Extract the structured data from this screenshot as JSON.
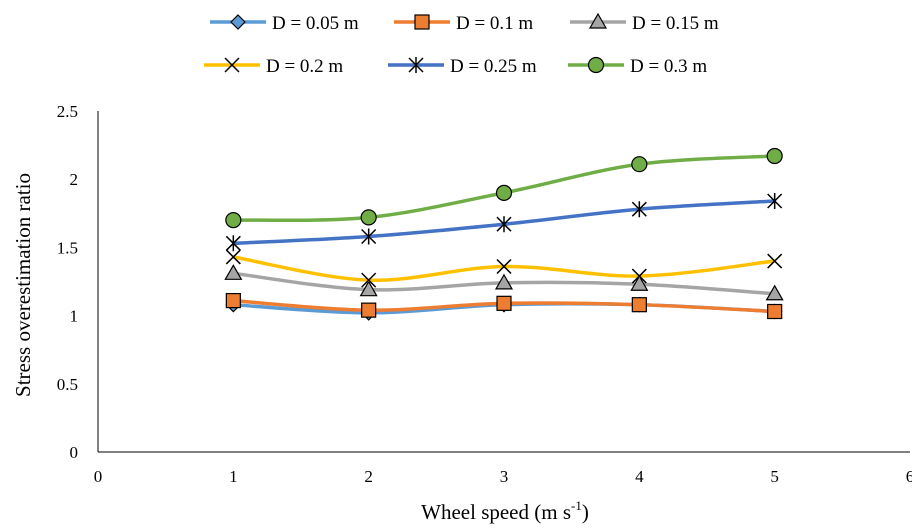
{
  "chart_data": {
    "type": "line",
    "title": "",
    "xlabel": "Wheel speed (m s",
    "xlabel_sup": "-1",
    "xlabel_tail": ")",
    "ylabel": "Stress overestimation ratio",
    "xlim": [
      0,
      6
    ],
    "ylim": [
      0,
      2.5
    ],
    "xticks": [
      "0",
      "1",
      "2",
      "3",
      "4",
      "5",
      "6"
    ],
    "yticks": [
      "0",
      "0.5",
      "1",
      "1.5",
      "2",
      "2.5"
    ],
    "x": [
      1,
      2,
      3,
      4,
      5
    ],
    "legend_position": "top",
    "grid": false,
    "smooth": true,
    "series": [
      {
        "name": "D = 0.05 m",
        "color": "#5B9BD5",
        "marker": "diamond",
        "values": [
          1.08,
          1.02,
          1.08,
          1.08,
          1.03
        ]
      },
      {
        "name": "D = 0.1 m",
        "color": "#ED7D31",
        "marker": "square",
        "values": [
          1.11,
          1.04,
          1.09,
          1.08,
          1.03
        ]
      },
      {
        "name": "D = 0.15 m",
        "color": "#A5A5A5",
        "marker": "triangle",
        "values": [
          1.31,
          1.19,
          1.24,
          1.23,
          1.16
        ]
      },
      {
        "name": "D = 0.2 m",
        "color": "#FFC000",
        "marker": "x",
        "values": [
          1.43,
          1.26,
          1.36,
          1.29,
          1.4
        ]
      },
      {
        "name": "D = 0.25 m",
        "color": "#4472C4",
        "marker": "star",
        "values": [
          1.53,
          1.58,
          1.67,
          1.78,
          1.84
        ]
      },
      {
        "name": "D = 0.3 m",
        "color": "#70AD47",
        "marker": "circle",
        "values": [
          1.7,
          1.72,
          1.9,
          2.11,
          2.17
        ]
      }
    ]
  }
}
